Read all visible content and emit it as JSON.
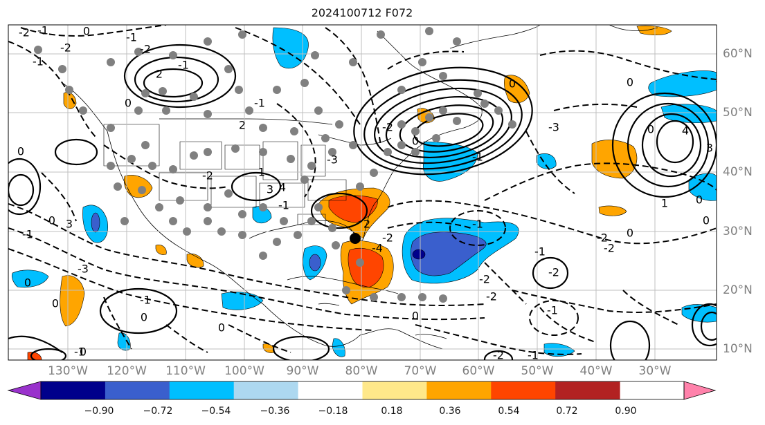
{
  "title": "2024100712 F072",
  "map": {
    "projection": "plate-carree",
    "lon_range": [
      -137,
      -16
    ],
    "lat_range": [
      8,
      65
    ],
    "lon_labels": [
      "130°W",
      "120°W",
      "110°W",
      "100°W",
      "90°W",
      "80°W",
      "70°W",
      "60°W",
      "50°W",
      "40°W",
      "30°W"
    ],
    "lat_labels": [
      "10°N",
      "20°N",
      "30°N",
      "40°N",
      "50°N",
      "60°N"
    ],
    "contour_labels": [
      "-2",
      "-1",
      "0",
      "-2",
      "-1",
      "0",
      "2",
      "-1",
      "-2",
      "2",
      "-1",
      "-1",
      "0",
      "0",
      "3",
      "-1",
      "-3",
      "0",
      "0",
      "-1",
      "-2",
      "-1",
      "3",
      "4",
      "-1",
      "-2",
      "-3",
      "2",
      "-2",
      "-4",
      "0",
      "-3",
      "-1",
      "-2",
      "-2",
      "0",
      "-2",
      "-1",
      "-1",
      "0",
      "-2",
      "0",
      "-1",
      "0",
      "-3",
      "0",
      "4",
      "3",
      "1",
      "0",
      "-2",
      "-2",
      "-1",
      "0",
      "0",
      "-1",
      "0",
      "0"
    ],
    "storm_marker": "black filled circle",
    "station_markers": "gray dots"
  },
  "colorbar": {
    "ticks": [
      "−0.90",
      "−0.72",
      "−0.54",
      "−0.36",
      "−0.18",
      "0.18",
      "0.36",
      "0.54",
      "0.72",
      "0.90"
    ],
    "colors": [
      "#9932cc",
      "#00008b",
      "#3a5fcd",
      "#00bfff",
      "#add8f0",
      "#ffffff",
      "#ffe88a",
      "#ffa500",
      "#ff4500",
      "#b22222",
      "#ff82ab"
    ]
  }
}
